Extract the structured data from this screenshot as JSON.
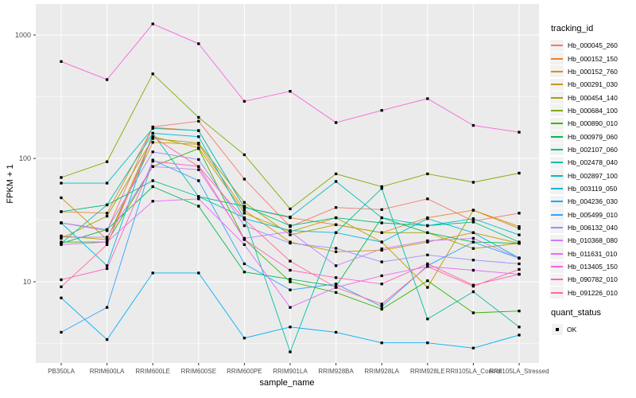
{
  "chart_data": {
    "type": "line",
    "title": "",
    "xlabel": "sample_name",
    "ylabel": "FPKM + 1",
    "y_scale": "log10",
    "y_ticks": [
      10,
      100,
      1000
    ],
    "y_minor_ticks": [
      3.162,
      31.62,
      316.2
    ],
    "ylim": [
      2.2,
      1800
    ],
    "grid": "white major and minor gridlines on gray panel",
    "legend_position": "right",
    "legend_titles": {
      "series": "tracking_id",
      "quant": "quant_status"
    },
    "quant_status_items": [
      {
        "label": "OK",
        "glyph": "black-square"
      }
    ],
    "categories": [
      "PB350LA",
      "RRIM600LA",
      "RRIM600LE",
      "RRIM600SE",
      "RRIM600PE",
      "RRIM901LA",
      "RRIM928BA",
      "RRIM928LA",
      "RRIM928LE",
      "RRII105LA_Control",
      "RRII105LA_Stressed"
    ],
    "series": [
      {
        "name": "Hb_000045_260",
        "color": "#F8766D",
        "values": [
          30,
          26,
          180,
          200,
          68,
          28,
          40,
          38.5,
          47,
          31,
          36
        ]
      },
      {
        "name": "Hb_000152_150",
        "color": "#EA8331",
        "values": [
          37,
          36,
          178,
          168,
          40,
          33,
          29,
          25,
          33,
          38,
          27
        ]
      },
      {
        "name": "Hb_000152_760",
        "color": "#D89000",
        "values": [
          48,
          22,
          135,
          130,
          38,
          21,
          17.5,
          18,
          21,
          25,
          20.5
        ]
      },
      {
        "name": "Hb_000291_030",
        "color": "#C09B00",
        "values": [
          23.5,
          22,
          150,
          122,
          36,
          25.5,
          33,
          21,
          9,
          38,
          28
        ]
      },
      {
        "name": "Hb_000454_140",
        "color": "#A3A500",
        "values": [
          22.5,
          34,
          145,
          133,
          44,
          24,
          29,
          25,
          25,
          18.6,
          20.5
        ]
      },
      {
        "name": "Hb_000684_100",
        "color": "#7CAE00",
        "values": [
          70,
          94,
          484,
          215,
          107,
          39,
          75,
          59,
          75,
          64,
          76
        ]
      },
      {
        "name": "Hb_000890_010",
        "color": "#39B600",
        "values": [
          21,
          21,
          86,
          120,
          22,
          10,
          8.2,
          6,
          10.2,
          5.6,
          5.8
        ]
      },
      {
        "name": "Hb_000979_060",
        "color": "#00BB4E",
        "values": [
          20.5,
          26.5,
          59,
          41,
          12,
          10.5,
          9.2,
          33,
          25,
          21,
          20.5
        ]
      },
      {
        "name": "Hb_002107_060",
        "color": "#00BF7D",
        "values": [
          37,
          42,
          66,
          49,
          41,
          28.5,
          33,
          30,
          28.5,
          30.5,
          21
        ]
      },
      {
        "name": "Hb_002478_040",
        "color": "#00C1A3",
        "values": [
          20.5,
          42,
          160,
          49,
          33,
          2.7,
          25,
          57,
          5,
          8.3,
          4.3
        ]
      },
      {
        "name": "Hb_002897_100",
        "color": "#00BFC4",
        "values": [
          63,
          63,
          175,
          168,
          40,
          33.5,
          65,
          33,
          28.5,
          32.5,
          24
        ]
      },
      {
        "name": "Hb_003119_050",
        "color": "#00BADE",
        "values": [
          30,
          13.5,
          160,
          150,
          32.5,
          26,
          25,
          21,
          32.5,
          25,
          15.6
        ]
      },
      {
        "name": "Hb_004236_030",
        "color": "#00B0F6",
        "values": [
          7.4,
          3.4,
          11.8,
          11.8,
          3.5,
          4.3,
          3.9,
          3.2,
          3.2,
          2.9,
          3.7
        ]
      },
      {
        "name": "Hb_005499_010",
        "color": "#35A2FF",
        "values": [
          3.9,
          6.2,
          97,
          66,
          14,
          8.6,
          9.6,
          6.3,
          13.5,
          21,
          15.5
        ]
      },
      {
        "name": "Hb_006132_040",
        "color": "#9590FF",
        "values": [
          30,
          26.5,
          113,
          98,
          28.5,
          20.6,
          18.7,
          14.5,
          16.5,
          15,
          14
        ]
      },
      {
        "name": "Hb_010368_080",
        "color": "#C77CFF",
        "values": [
          23,
          23,
          86,
          81,
          22.5,
          25.5,
          13.5,
          18.5,
          21.5,
          22.5,
          15.6
        ]
      },
      {
        "name": "Hb_011631_010",
        "color": "#E76BF3",
        "values": [
          20,
          21,
          45,
          47,
          20,
          6.2,
          9,
          11.2,
          13.3,
          12.4,
          11.5
        ]
      },
      {
        "name": "Hb_013405_150",
        "color": "#FA62DB",
        "values": [
          610,
          435,
          1230,
          850,
          290,
          350,
          195,
          245,
          305,
          185,
          163
        ]
      },
      {
        "name": "Hb_090782_010",
        "color": "#FF62BC",
        "values": [
          10.4,
          12.8,
          95,
          86,
          22,
          12.4,
          10.8,
          9.6,
          14,
          9.4,
          11.5
        ]
      },
      {
        "name": "Hb_091226_010",
        "color": "#FF6A98",
        "values": [
          9.1,
          20,
          150,
          86,
          32,
          14.7,
          9,
          6.6,
          13.3,
          9.2,
          12.6
        ]
      }
    ]
  },
  "colors": {
    "page_bg": "#FFFFFF",
    "panel_bg": "#EBEBEB",
    "gridline": "#FFFFFF",
    "axis_text": "#4D4D4D",
    "axis_tick": "#333333",
    "title_text": "#000000",
    "point": "#000000",
    "legend_key_bg": "#F2F2F2"
  }
}
